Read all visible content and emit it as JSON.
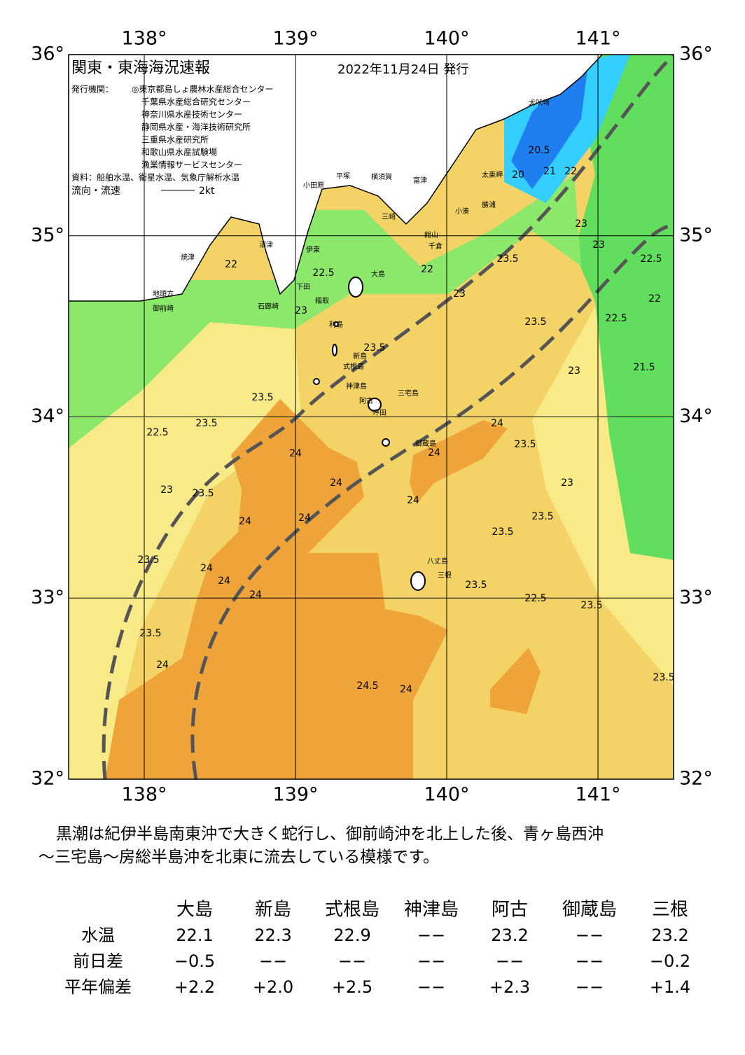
{
  "map": {
    "title": "関東・東海海況速報",
    "date": "2022年11月24日 発行",
    "issuers_label": "発行機関：",
    "issuers": [
      "◎東京都島しょ農林水産総合センター",
      "千葉県水産総合研究センター",
      "神奈川県水産技術センター",
      "静岡県水産・海洋技術研究所",
      "三重県水産研究所",
      "和歌山県水産試験場",
      "漁業情報サービスセンター"
    ],
    "source": "資料：船舶水温、衛星水温、気象庁解析水温",
    "flow_label": "流向・流速",
    "flow_scale": "2kt",
    "lon_ticks": [
      {
        "value": 138,
        "label": "138°"
      },
      {
        "value": 139,
        "label": "139°"
      },
      {
        "value": 140,
        "label": "140°"
      },
      {
        "value": 141,
        "label": "141°"
      }
    ],
    "lat_ticks": [
      {
        "value": 36,
        "label": "36°"
      },
      {
        "value": 35,
        "label": "35°"
      },
      {
        "value": 34,
        "label": "34°"
      },
      {
        "value": 33,
        "label": "33°"
      },
      {
        "value": 32,
        "label": "32°"
      }
    ],
    "xlim": [
      137.5,
      141.5
    ],
    "ylim": [
      32,
      36
    ],
    "places": [
      "犬吠埼",
      "太東岬",
      "勝浦",
      "小湊",
      "館山",
      "千倉",
      "富津",
      "横須賀",
      "平塚",
      "小田原",
      "三崎",
      "伊東",
      "沼津",
      "稲取",
      "下田",
      "石廊崎",
      "焼津",
      "地頭方",
      "御前崎",
      "大島",
      "利島",
      "新島",
      "式根島",
      "神津島",
      "三宅島",
      "阿古",
      "坪田",
      "御蔵島",
      "八丈島",
      "三根"
    ],
    "contours": [
      "20.5",
      "20",
      "21",
      "22",
      "22",
      "23",
      "23",
      "22.5",
      "22",
      "21.5",
      "23",
      "23.5",
      "23.5",
      "22",
      "22.5",
      "22.5",
      "23",
      "23",
      "23.5",
      "22.5",
      "23.5",
      "23",
      "23.5",
      "24",
      "24",
      "24",
      "24",
      "24",
      "24",
      "24",
      "24",
      "23.5",
      "23.5",
      "24",
      "24",
      "24.5",
      "24",
      "24",
      "23.5",
      "23.5",
      "23.5",
      "22.5",
      "23",
      "23.5",
      "23.5",
      "23.5",
      "23.5"
    ]
  },
  "text": [
    "黒潮は紀伊半島南東沖で大きく蛇行し、御前崎沖を北上した後、青ヶ島西沖",
    "～三宅島～房総半島沖を北東に流去している模様です。"
  ],
  "table": {
    "header": [
      "大島",
      "新島",
      "式根島",
      "神津島",
      "阿古",
      "御蔵島",
      "三根"
    ],
    "rows": [
      [
        "水温",
        "22.1",
        "22.3",
        "22.9",
        "−−",
        "23.2",
        "−−",
        "23.2"
      ],
      [
        "前日差",
        "−0.5",
        "−−",
        "−−",
        "−−",
        "−−",
        "−−",
        "−0.2"
      ],
      [
        "平年偏差",
        "+2.2",
        "+2.0",
        "+2.5",
        "−−",
        "+2.3",
        "−−",
        "+1.4"
      ]
    ]
  }
}
